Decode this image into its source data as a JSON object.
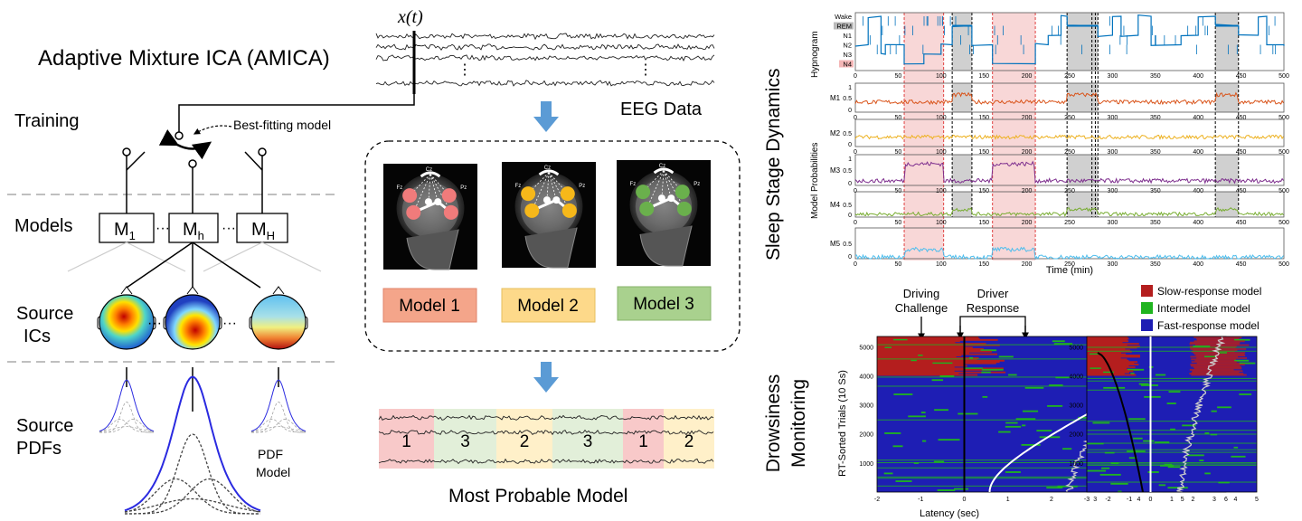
{
  "amica": {
    "title": "Adaptive Mixture ICA (AMICA)",
    "signal_label": "x(t)",
    "eeg_label": "EEG Data",
    "ellipsis": "⋮",
    "best_fit_label": "Best-fitting model",
    "row_labels": {
      "training": "Training",
      "models": "Models",
      "source_ics_1": "Source",
      "source_ics_2": "ICs",
      "source_pdfs_1": "Source",
      "source_pdfs_2": "PDFs"
    },
    "model_boxes": [
      {
        "base": "M",
        "sub": "1"
      },
      {
        "base": "M",
        "sub": "h"
      },
      {
        "base": "M",
        "sub": "H"
      }
    ],
    "dots": "···",
    "pdf_model_label_1": "PDF",
    "pdf_model_label_2": "Model",
    "model_cards": [
      {
        "label": "Model 1",
        "fill": "#f4a58a",
        "dot": "#f07b7b"
      },
      {
        "label": "Model 2",
        "fill": "#fdd98a",
        "dot": "#f6b81a"
      },
      {
        "label": "Model 3",
        "fill": "#a9d18e",
        "dot": "#6ab04c"
      }
    ],
    "electrode_labels": [
      "Cz",
      "Fz",
      "Pz"
    ],
    "sequence": [
      {
        "label": "1",
        "fill": "#f8c9c9"
      },
      {
        "label": "3",
        "fill": "#e2efd9"
      },
      {
        "label": "2",
        "fill": "#fff0c9"
      },
      {
        "label": "3",
        "fill": "#e2efd9"
      },
      {
        "label": "1",
        "fill": "#f8c9c9"
      },
      {
        "label": "2",
        "fill": "#fff0c9"
      }
    ],
    "most_probable_label": "Most Probable Model",
    "arrow_color": "#5b9bd5"
  },
  "sleep": {
    "section_title": "Sleep Stage Dynamics",
    "hypnogram_title": "Hypnogram",
    "stages": [
      "Wake",
      "REM",
      "N1",
      "N2",
      "N3",
      "N4"
    ],
    "model_prob_title": "Model Probabilities",
    "models": [
      {
        "name": "M1",
        "color": "#d95319"
      },
      {
        "name": "M2",
        "color": "#edb120"
      },
      {
        "name": "M3",
        "color": "#7e2f8e"
      },
      {
        "name": "M4",
        "color": "#77ac30"
      },
      {
        "name": "M5",
        "color": "#4dbeee"
      }
    ],
    "hypnogram_color": "#0072bd",
    "ytick_labels": [
      "0",
      "0.5",
      "1"
    ],
    "xticks": [
      "0",
      "50",
      "100",
      "150",
      "200",
      "250",
      "300",
      "350",
      "400",
      "450",
      "500"
    ],
    "xlabel": "Time (min)",
    "xlim": [
      0,
      500
    ],
    "pink_spans": [
      [
        57,
        103
      ],
      [
        160,
        210
      ]
    ],
    "gray_spans": [
      [
        113,
        136
      ],
      [
        247,
        283
      ],
      [
        420,
        447
      ]
    ],
    "red_lines": [
      57,
      103,
      160,
      210
    ],
    "black_lines": [
      113,
      136,
      247,
      276,
      280,
      283,
      420,
      447
    ]
  },
  "drowsiness": {
    "section_title_1": "Drowsiness",
    "section_title_2": "Monitoring",
    "legend": [
      {
        "label": "Slow-response model",
        "color": "#b41e1e"
      },
      {
        "label": "Intermediate model",
        "color": "#1fb41f"
      },
      {
        "label": "Fast-response model",
        "color": "#1e1eb4"
      }
    ],
    "annotations": {
      "challenge_1": "Driving",
      "challenge_2": "Challenge",
      "response_1": "Driver",
      "response_2": "Response"
    },
    "ylabel": "RT-Sorted  Trials (10 Ss)",
    "xlabel": "Latency (sec)",
    "left_xticks": [
      "-2",
      "-1",
      "0",
      "1",
      "2",
      "3",
      "4",
      "5",
      "6"
    ],
    "right_xticks": [
      "-3",
      "-2",
      "-1",
      "0",
      "1",
      "2",
      "3",
      "4",
      "5"
    ],
    "yticks": [
      "1000",
      "2000",
      "3000",
      "4000",
      "5000"
    ]
  }
}
